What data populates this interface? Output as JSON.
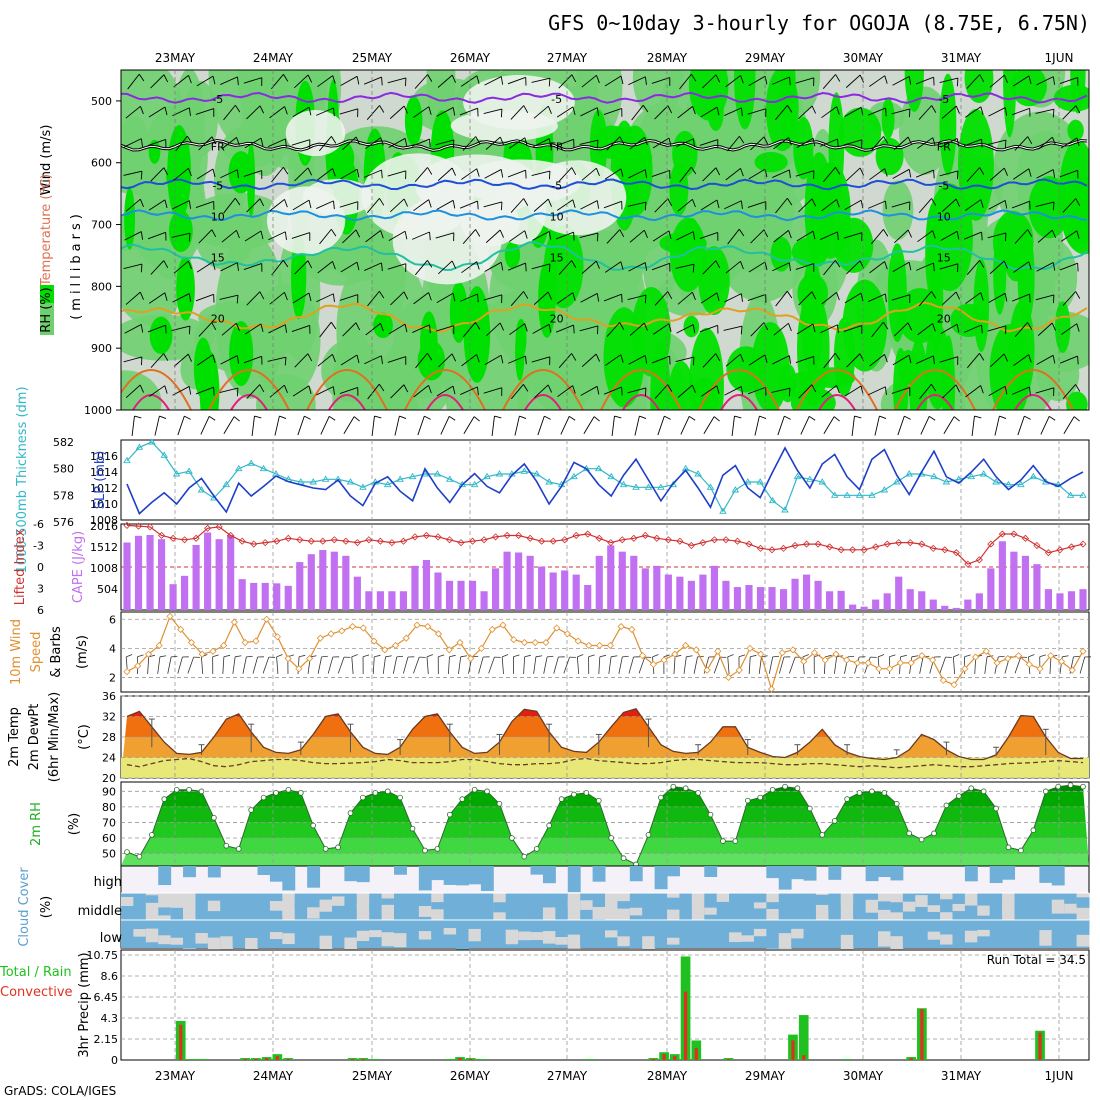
{
  "title": "GFS 0~10day 3-hourly for OGOJA (8.75E, 6.75N)",
  "credit": "GrADS: COLA/IGES",
  "dates": [
    "23MAY",
    "24MAY",
    "25MAY",
    "26MAY",
    "27MAY",
    "28MAY",
    "29MAY",
    "30MAY",
    "31MAY",
    "1JUN"
  ],
  "colors": {
    "rh_light": "#d0d9d0",
    "rh_mid": "#6fd06f",
    "rh_bright": "#00e000",
    "temp_purple": "#8a2be2",
    "temp_black": "#000000",
    "temp_blue": "#1e4fd6",
    "temp_lightblue": "#1e90e0",
    "temp_teal": "#20c0a0",
    "temp_orange": "#e0a020",
    "temp_darkorange": "#e07020",
    "temp_magenta": "#e0207a",
    "thickness": "#30b8c8",
    "slp": "#1e3fc8",
    "lifted_index": "#d03030",
    "cape": "#c070f0",
    "wind_speed": "#e09030",
    "temp_high": "#e02010",
    "temp_mid": "#f07010",
    "temp_low": "#f0a030",
    "dewpt": "#e8e878",
    "rh2m_dark": "#00a000",
    "rh2m_light": "#40e040",
    "cloud_blue": "#70b0d8",
    "cloud_gray": "#d8d8d8",
    "precip_green": "#20c020",
    "precip_red": "#e03020"
  },
  "panels": {
    "upper": {
      "labels": {
        "wind": "Wind (m/s)",
        "temperature": "Temperature (°C)",
        "rh": "RH (%)",
        "millibars": "(millibars)"
      },
      "contour_labels": [
        "-5",
        "-5",
        "FR",
        "FR",
        "FR",
        "-5",
        "-5",
        "10",
        "15",
        "20",
        "20"
      ]
    },
    "thickness_slp": {
      "labels": {
        "thickness": "1000-500mb Thickness (dm)",
        "slp": "SLP (mb)"
      }
    },
    "cape_li": {
      "labels": {
        "li": "Lifted Index",
        "cape": "CAPE (J/kg)"
      }
    },
    "wind10m": {
      "labels": {
        "line1": "10m Wind",
        "line2": "Speed",
        "line3": "& Barbs",
        "unit": "(m/s)"
      }
    },
    "temp2m": {
      "labels": {
        "line1": "2m Temp",
        "line2": "2m DewPt",
        "line3": "(6hr Min/Max)",
        "unit": "(°C)"
      }
    },
    "rh2m": {
      "labels": {
        "line1": "2m RH",
        "unit": "(%)"
      }
    },
    "cloud": {
      "labels": {
        "title": "Cloud Cover",
        "unit": "(%)",
        "high": "high",
        "middle": "middle",
        "low": "low"
      }
    },
    "precip": {
      "labels": {
        "line1": "Total / Rain",
        "line2": "Convective",
        "title": "3hr Precip (mm)"
      },
      "run_total": "Run Total = 34.5"
    }
  },
  "chart_data": [
    {
      "type": "heatmap",
      "name": "Upper-air RH, temperature and wind cross-section",
      "ylabel": "millibars",
      "yticks": [
        500,
        600,
        700,
        800,
        900,
        1000
      ],
      "ylim": [
        450,
        1000
      ],
      "legend": [
        "RH (%)",
        "Temperature (°C)",
        "Wind (m/s)"
      ],
      "isotherms": [
        {
          "label": "-5",
          "pressure_mb": 495
        },
        {
          "label": "FR",
          "pressure_mb": 572
        },
        {
          "label": "-5",
          "pressure_mb": 635
        },
        {
          "label": "10",
          "pressure_mb": 685
        },
        {
          "label": "15",
          "pressure_mb": 752
        },
        {
          "label": "20",
          "pressure_mb": 850
        }
      ]
    },
    {
      "type": "line",
      "name": "1000-500mb Thickness & SLP",
      "series": [
        {
          "name": "1000-500mb Thickness (dm)",
          "axis": "left",
          "ylim": [
            576,
            582
          ],
          "yticks": [
            576,
            578,
            580,
            582
          ],
          "values": [
            580.6,
            581.6,
            582.0,
            581.0,
            579.6,
            579.8,
            578.4,
            577.8,
            578.8,
            580.0,
            580.4,
            580.0,
            579.6,
            579.2,
            579.0,
            579.0,
            579.2,
            579.2,
            579.0,
            578.6,
            579.0,
            578.8,
            579.2,
            579.4,
            579.6,
            579.6,
            579.2,
            578.8,
            578.8,
            579.4,
            579.6,
            579.6,
            579.8,
            579.6,
            579.0,
            578.8,
            579.4,
            580.0,
            580.0,
            579.4,
            578.8,
            578.6,
            578.6,
            578.6,
            578.8,
            580.0,
            579.6,
            578.6,
            576.8,
            578.4,
            579.0,
            579.0,
            577.6,
            576.9,
            579.4,
            579.2,
            579.0,
            578.0,
            578.0,
            578.0,
            578.0,
            578.4,
            579.0,
            579.6,
            579.6,
            579.4,
            579.0,
            579.2,
            579.4,
            579.6,
            579.0,
            578.8,
            578.8,
            579.4,
            579.0,
            578.8,
            578.0,
            578.0
          ]
        },
        {
          "name": "SLP (mb)",
          "axis": "right",
          "ylim": [
            1008,
            1018
          ],
          "yticks": [
            1008,
            1010,
            1012,
            1014,
            1016
          ],
          "values": [
            1012.5,
            1008.8,
            1010.2,
            1011.4,
            1010.0,
            1012.0,
            1013.2,
            1011.0,
            1009.0,
            1012.6,
            1011.0,
            1012.2,
            1013.5,
            1012.8,
            1012.4,
            1012.0,
            1011.8,
            1013.0,
            1011.0,
            1009.8,
            1012.6,
            1013.4,
            1011.6,
            1010.4,
            1014.4,
            1012.0,
            1010.2,
            1012.4,
            1013.8,
            1012.2,
            1011.4,
            1013.6,
            1015.0,
            1012.8,
            1010.0,
            1012.2,
            1015.2,
            1014.4,
            1012.4,
            1011.0,
            1013.6,
            1015.6,
            1013.0,
            1010.4,
            1012.6,
            1014.2,
            1012.0,
            1009.6,
            1013.6,
            1014.8,
            1012.0,
            1010.8,
            1014.0,
            1017.0,
            1014.2,
            1012.0,
            1015.0,
            1016.2,
            1013.4,
            1011.8,
            1015.6,
            1016.8,
            1013.6,
            1011.2,
            1014.0,
            1016.6,
            1013.4,
            1012.6,
            1014.0,
            1015.6,
            1013.4,
            1011.8,
            1013.0,
            1014.8,
            1012.8,
            1012.2,
            1013.2,
            1014.0
          ]
        }
      ]
    },
    {
      "type": "bar",
      "name": "CAPE & Lifted Index",
      "series": [
        {
          "name": "CAPE (J/kg)",
          "axis": "left",
          "ylim": [
            0,
            2016
          ],
          "yticks": [
            504,
            1008,
            1512,
            2016
          ],
          "values": [
            1620,
            1780,
            1800,
            1700,
            620,
            820,
            1560,
            1860,
            1700,
            1800,
            740,
            650,
            650,
            640,
            580,
            1150,
            1340,
            1440,
            1400,
            1300,
            800,
            450,
            450,
            450,
            450,
            1060,
            1200,
            900,
            700,
            700,
            700,
            450,
            1000,
            1400,
            1380,
            1300,
            1040,
            900,
            950,
            850,
            600,
            1300,
            1550,
            1400,
            1300,
            1000,
            1060,
            850,
            800,
            700,
            850,
            1060,
            700,
            550,
            600,
            550,
            550,
            500,
            750,
            850,
            700,
            450,
            460,
            130,
            80,
            250,
            400,
            800,
            500,
            450,
            250,
            100,
            50,
            250,
            400,
            1000,
            1650,
            1400,
            1300,
            1100,
            500,
            400,
            450,
            500
          ]
        },
        {
          "name": "Lifted Index",
          "axis": "right",
          "ylim": [
            6,
            -6
          ],
          "yticks": [
            -6,
            -3,
            0,
            3,
            6
          ],
          "values": [
            -5.8,
            -5.7,
            -5.6,
            -4.4,
            -4.0,
            -3.8,
            -4.0,
            -5.4,
            -5.6,
            -4.4,
            -3.6,
            -3.2,
            -3.4,
            -3.6,
            -4.0,
            -3.8,
            -3.6,
            -3.6,
            -3.8,
            -3.6,
            -3.4,
            -3.8,
            -3.6,
            -3.4,
            -3.6,
            -4.2,
            -4.4,
            -4.2,
            -3.8,
            -3.4,
            -3.6,
            -3.8,
            -4.2,
            -4.4,
            -4.4,
            -4.0,
            -3.6,
            -3.6,
            -3.8,
            -4.4,
            -4.6,
            -4.0,
            -3.4,
            -3.8,
            -4.0,
            -4.4,
            -4.0,
            -3.8,
            -3.6,
            -3.0,
            -3.4,
            -3.8,
            -3.8,
            -3.6,
            -3.2,
            -2.6,
            -2.4,
            -2.6,
            -3.0,
            -3.2,
            -3.2,
            -2.8,
            -2.4,
            -2.4,
            -2.4,
            -2.8,
            -3.2,
            -3.4,
            -3.4,
            -3.2,
            -2.6,
            -2.4,
            -2.0,
            -0.4,
            -1.0,
            -3.2,
            -4.6,
            -4.6,
            -4.0,
            -3.0,
            -2.0,
            -2.4,
            -2.8,
            -3.2
          ]
        }
      ]
    },
    {
      "type": "line",
      "name": "10m Wind Speed & Barbs",
      "ylabel": "(m/s)",
      "ylim": [
        1,
        6.5
      ],
      "yticks": [
        2,
        4,
        6
      ],
      "values": [
        2.4,
        2.8,
        3.6,
        4.2,
        6.2,
        5.3,
        4.4,
        3.6,
        3.8,
        4.2,
        5.8,
        4.4,
        4.5,
        6.0,
        4.8,
        3.3,
        2.6,
        3.3,
        4.7,
        5.0,
        5.2,
        5.5,
        5.4,
        4.5,
        3.9,
        4.2,
        4.7,
        5.6,
        5.5,
        5.0,
        3.9,
        4.4,
        3.3,
        4.0,
        5.3,
        5.6,
        4.6,
        4.4,
        4.4,
        4.4,
        5.4,
        5.0,
        4.5,
        4.2,
        4.2,
        4.2,
        5.5,
        5.3,
        3.5,
        2.9,
        3.2,
        3.6,
        4.2,
        3.9,
        2.5,
        3.8,
        2.0,
        2.5,
        4.0,
        3.6,
        1.2,
        3.7,
        3.9,
        3.1,
        3.7,
        3.2,
        3.6,
        3.2,
        3.0,
        3.0,
        2.6,
        2.6,
        3.0,
        3.0,
        3.5,
        3.2,
        1.8,
        1.5,
        2.6,
        3.4,
        3.8,
        3.0,
        3.3,
        3.5,
        2.9,
        2.6,
        3.5,
        3.1,
        2.5,
        3.8
      ]
    },
    {
      "type": "area",
      "name": "2m Temp / 2m DewPt",
      "ylabel": "(°C)",
      "ylim": [
        20,
        36
      ],
      "yticks": [
        20,
        24,
        28,
        32,
        36
      ],
      "series": [
        {
          "name": "2m Temp",
          "values": [
            32,
            33,
            30,
            27,
            24.8,
            24.6,
            25,
            28,
            31.5,
            32.5,
            29,
            26,
            25,
            24.8,
            25.5,
            28.5,
            32,
            32.5,
            29,
            26,
            24.8,
            24.6,
            26,
            29.5,
            32,
            32.5,
            29,
            26,
            24.8,
            25,
            27,
            31,
            33.4,
            33,
            29,
            26,
            25.2,
            25,
            27,
            30,
            32.8,
            33.5,
            30,
            26.5,
            25.2,
            24.8,
            25,
            27,
            30,
            30,
            26,
            25,
            24.2,
            24,
            25,
            27,
            29.5,
            26.5,
            25,
            24.2,
            23.8,
            23.6,
            24,
            25.5,
            28.5,
            27.5,
            25.5,
            24.2,
            23.6,
            23.6,
            24.5,
            28,
            32.2,
            32,
            28,
            25,
            23.8,
            23.8
          ]
        },
        {
          "name": "2m DewPt",
          "values": [
            22.6,
            22.2,
            22.8,
            23.4,
            23.6,
            23.8,
            23.2,
            22.4,
            22.2,
            22.6,
            23.2,
            23.4,
            23.6,
            23.6,
            23.4,
            23.0,
            22.8,
            22.8,
            22.9,
            23.0,
            23.2,
            23.6,
            23.4,
            23.0,
            23.0,
            23.0,
            23.2,
            23.6,
            23.6,
            23.2,
            22.8,
            22.6,
            22.6,
            22.8,
            22.8,
            23.0,
            23.6,
            23.8,
            23.4,
            23.2,
            23.0,
            22.8,
            22.8,
            23.0,
            23.4,
            23.6,
            23.6,
            23.4,
            23.2,
            23.0,
            23.0,
            23.0,
            22.8,
            22.6,
            22.6,
            22.8,
            22.8,
            22.6,
            22.4,
            22.2,
            22.4,
            22.2,
            22.0,
            22.2,
            22.4,
            22.6,
            22.4,
            22.2,
            22.2,
            22.4,
            22.6,
            22.8,
            22.9,
            23.0,
            23.2,
            23.4,
            23.2,
            23.0
          ]
        }
      ]
    },
    {
      "type": "area",
      "name": "2m RH",
      "ylabel": "(%)",
      "ylim": [
        42,
        96
      ],
      "yticks": [
        50,
        60,
        70,
        80,
        90
      ],
      "values": [
        51,
        48,
        62,
        85,
        91,
        91,
        90,
        73,
        55,
        53,
        78,
        86,
        89,
        91,
        89,
        68,
        53,
        54,
        76,
        86,
        89,
        90,
        86,
        66,
        52,
        53,
        75,
        85,
        91,
        90,
        82,
        60,
        48,
        53,
        68,
        85,
        88,
        89,
        84,
        60,
        47,
        43,
        62,
        86,
        93,
        92,
        89,
        75,
        58,
        58,
        84,
        86,
        91,
        93,
        92,
        79,
        62,
        71,
        85,
        89,
        90,
        89,
        82,
        63,
        59,
        63,
        81,
        87,
        92,
        90,
        79,
        54,
        52,
        65,
        90,
        93,
        94,
        93
      ]
    },
    {
      "type": "heatmap",
      "name": "Cloud Cover",
      "ylabel": "(%)",
      "layers": [
        "high",
        "middle",
        "low"
      ]
    },
    {
      "type": "bar",
      "name": "3hr Precip",
      "ylabel": "3hr Precip (mm)",
      "ylim": [
        0,
        10.75
      ],
      "yticks": [
        0,
        2.15,
        4.3,
        6.45,
        8.6,
        10.75
      ],
      "series": [
        {
          "name": "Total / Rain",
          "values": [
            0,
            0,
            0,
            0,
            0,
            4.0,
            0.1,
            0.1,
            0,
            0,
            0,
            0.2,
            0.2,
            0.3,
            0.6,
            0.2,
            0,
            0,
            0,
            0,
            0,
            0.2,
            0.2,
            0.1,
            0,
            0,
            0,
            0,
            0,
            0,
            0.1,
            0.3,
            0.2,
            0.1,
            0,
            0,
            0,
            0,
            0,
            0,
            0,
            0,
            0,
            0.1,
            0,
            0,
            0,
            0,
            0,
            0.2,
            0.8,
            0.6,
            10.6,
            2.0,
            0,
            0,
            0.2,
            0,
            0,
            0,
            0,
            0,
            2.6,
            4.6,
            0,
            0,
            0,
            0.1,
            0,
            0,
            0,
            0,
            0,
            0.3,
            5.3,
            0,
            0,
            0,
            0,
            0,
            0,
            0,
            0,
            0,
            0,
            3.0,
            0,
            0,
            0,
            0
          ]
        },
        {
          "name": "Convective",
          "values": [
            0,
            0,
            0,
            0,
            0,
            3.6,
            0,
            0,
            0,
            0,
            0,
            0.1,
            0.1,
            0.2,
            0.4,
            0.1,
            0,
            0,
            0,
            0,
            0,
            0.1,
            0.1,
            0,
            0,
            0,
            0,
            0,
            0,
            0,
            0,
            0.2,
            0.1,
            0,
            0,
            0,
            0,
            0,
            0,
            0,
            0,
            0,
            0,
            0,
            0,
            0,
            0,
            0,
            0,
            0.1,
            0.6,
            0.4,
            7.0,
            1.2,
            0,
            0,
            0.1,
            0,
            0,
            0,
            0,
            0,
            2.0,
            0.5,
            0,
            0,
            0,
            0,
            0,
            0,
            0,
            0,
            0,
            0.2,
            5.2,
            0,
            0,
            0,
            0,
            0,
            0,
            0,
            0,
            0,
            0,
            2.8,
            0,
            0,
            0,
            0
          ]
        }
      ],
      "annotation": "Run Total = 34.5"
    }
  ]
}
